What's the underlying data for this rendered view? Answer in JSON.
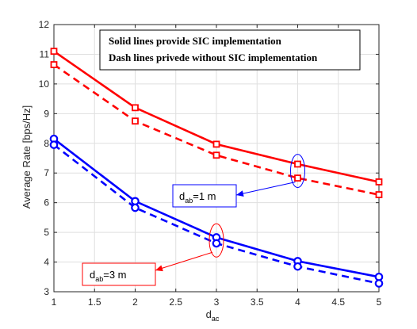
{
  "chart_data": {
    "type": "line",
    "title": "",
    "xlabel_main": "d",
    "xlabel_sub": "ac",
    "ylabel": "Average Rate [bps/Hz]",
    "xlim": [
      1,
      5
    ],
    "ylim": [
      3,
      12
    ],
    "x_ticks": [
      "1",
      "1.5",
      "2",
      "2.5",
      "3",
      "3.5",
      "4",
      "4.5",
      "5"
    ],
    "y_ticks": [
      "3",
      "4",
      "5",
      "6",
      "7",
      "8",
      "9",
      "10",
      "11",
      "12"
    ],
    "grid": true,
    "x": [
      1,
      2,
      3,
      4,
      5
    ],
    "series": [
      {
        "key": "red_solid",
        "color": "#ff0000",
        "dash": false,
        "marker": "square",
        "values": [
          11.1,
          9.2,
          7.97,
          7.3,
          6.7
        ]
      },
      {
        "key": "red_dash",
        "color": "#ff0000",
        "dash": true,
        "marker": "square",
        "values": [
          10.65,
          8.75,
          7.6,
          6.83,
          6.27
        ]
      },
      {
        "key": "blue_solid",
        "color": "#0000ff",
        "dash": false,
        "marker": "circle",
        "values": [
          8.15,
          6.05,
          4.83,
          4.03,
          3.5
        ]
      },
      {
        "key": "blue_dash",
        "color": "#0000ff",
        "dash": true,
        "marker": "circle",
        "values": [
          7.95,
          5.83,
          4.63,
          3.85,
          3.28
        ]
      }
    ],
    "notes": {
      "line1": "Solid lines provide SIC implementation",
      "line2": "Dash lines privede without SIC implementation"
    },
    "annotations": [
      {
        "key": "dab1",
        "main": "d",
        "sub": "ab",
        "rest": "=1 m",
        "color": "#0000ff",
        "target_x": 4,
        "target_y": 7.07
      },
      {
        "key": "dab3",
        "main": "d",
        "sub": "ab",
        "rest": "=3 m",
        "color": "#ff0000",
        "target_x": 3,
        "target_y": 4.73
      }
    ]
  }
}
